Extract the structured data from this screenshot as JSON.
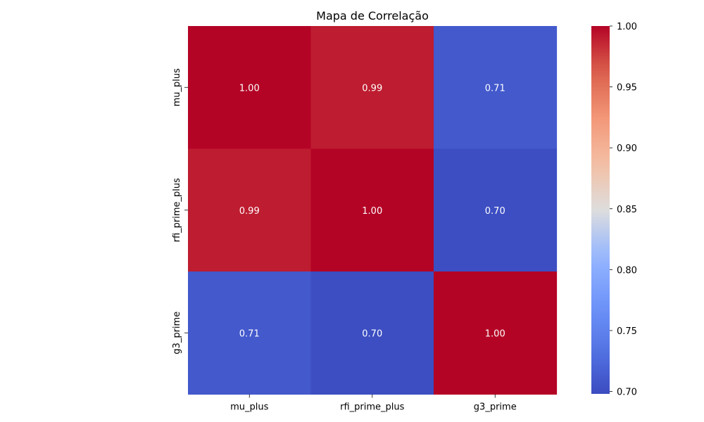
{
  "chart_data": {
    "type": "heatmap",
    "title": "Mapa de Correlação",
    "xlabel": "",
    "ylabel": "",
    "x_categories": [
      "mu_plus",
      "rfi_prime_plus",
      "g3_prime"
    ],
    "y_categories": [
      "mu_plus",
      "rfi_prime_plus",
      "g3_prime"
    ],
    "values": [
      [
        1.0,
        0.99,
        0.71
      ],
      [
        0.99,
        1.0,
        0.7
      ],
      [
        0.71,
        0.7,
        1.0
      ]
    ],
    "cell_labels": [
      [
        "1.00",
        "0.99",
        "0.71"
      ],
      [
        "0.99",
        "1.00",
        "0.70"
      ],
      [
        "0.71",
        "0.70",
        "1.00"
      ]
    ],
    "colormap": "coolwarm",
    "colorbar": {
      "vmin": 0.698,
      "vmax": 1.0,
      "ticks": [
        0.7,
        0.75,
        0.8,
        0.85,
        0.9,
        0.95,
        1.0
      ],
      "tick_labels": [
        "0.70",
        "0.75",
        "0.80",
        "0.85",
        "0.90",
        "0.95",
        "1.00"
      ],
      "placement": "right"
    },
    "grid": false
  }
}
